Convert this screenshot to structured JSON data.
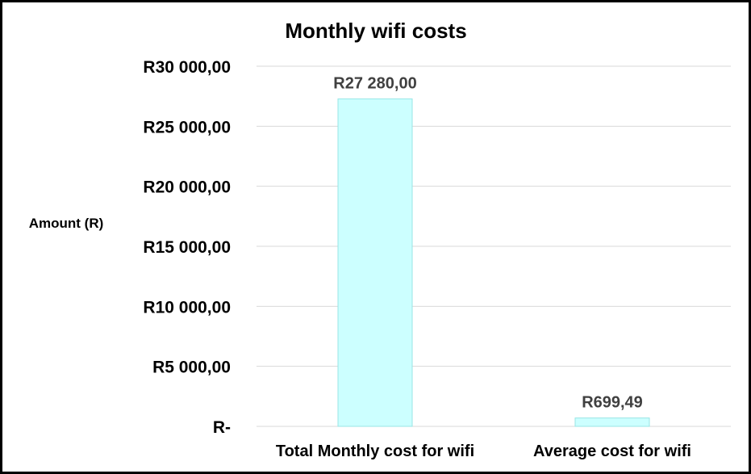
{
  "chart_data": {
    "type": "bar",
    "title": "Monthly wifi costs",
    "ylabel": "Amount (R)",
    "xlabel": "",
    "categories": [
      "Total Monthly cost for wifi",
      "Average cost for wifi"
    ],
    "values": [
      27280,
      699.49
    ],
    "data_labels": [
      "R27 280,00",
      "R699,49"
    ],
    "ylim": [
      0,
      30000
    ],
    "yticks": [
      0,
      5000,
      10000,
      15000,
      20000,
      25000,
      30000
    ],
    "ytick_labels": [
      "R-",
      "R5 000,00",
      "R10 000,00",
      "R15 000,00",
      "R20 000,00",
      "R25 000,00",
      "R30 000,00"
    ],
    "grid": true,
    "legend": "none",
    "colors": {
      "bar_fill": "#ccffff",
      "bar_stroke": "#99e6e6",
      "gridline": "#d9d9d9",
      "data_label": "#404040",
      "border": "#000000"
    }
  }
}
